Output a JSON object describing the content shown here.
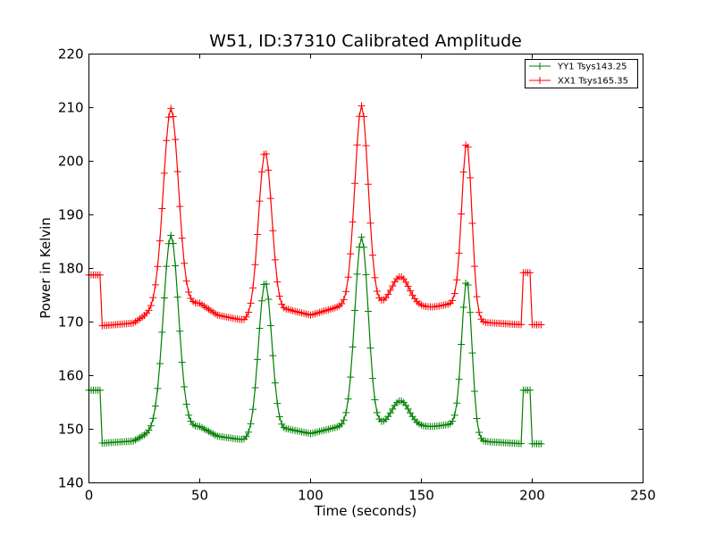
{
  "chart_data": {
    "type": "line",
    "title": "W51, ID:37310 Calibrated Amplitude",
    "xlabel": "Time (seconds)",
    "ylabel": "Power in Kelvin",
    "xlim": [
      0,
      250
    ],
    "ylim": [
      140,
      220
    ],
    "xticks": [
      0,
      50,
      100,
      150,
      200,
      250
    ],
    "yticks": [
      140,
      150,
      160,
      170,
      180,
      190,
      200,
      210,
      220
    ],
    "xtick_labels": [
      "0",
      "50",
      "100",
      "150",
      "200",
      "250"
    ],
    "ytick_labels": [
      "140",
      "150",
      "160",
      "170",
      "180",
      "190",
      "200",
      "210",
      "220"
    ],
    "grid": false,
    "legend_position": "top-right",
    "marker": "+",
    "series": [
      {
        "name": "YY1 Tsys143.25",
        "color": "#008000",
        "baseline": [
          [
            0,
            157.3
          ],
          [
            5,
            157.3
          ],
          [
            5.7,
            147.4
          ],
          [
            20,
            147.8
          ],
          [
            30,
            150
          ],
          [
            50,
            150.5
          ],
          [
            58,
            148.7
          ],
          [
            70,
            148
          ],
          [
            90,
            150
          ],
          [
            100,
            149.2
          ],
          [
            118,
            151
          ],
          [
            135,
            150.5
          ],
          [
            155,
            150.5
          ],
          [
            165,
            151
          ],
          [
            175,
            147.8
          ],
          [
            195.5,
            147.3
          ],
          [
            196,
            157.3
          ],
          [
            199.5,
            157.3
          ],
          [
            200,
            147.3
          ],
          [
            204,
            147.3
          ]
        ],
        "peaks": [
          {
            "center": 37,
            "amplitude": 36,
            "width": 3.4
          },
          {
            "center": 79.5,
            "amplitude": 28.5,
            "width": 3.0
          },
          {
            "center": 123,
            "amplitude": 35,
            "width": 3.0
          },
          {
            "center": 140.5,
            "amplitude": 4.8,
            "width": 4.0
          },
          {
            "center": 170.5,
            "amplitude": 28.5,
            "width": 2.3
          }
        ],
        "sample_step": 1
      },
      {
        "name": "XX1 Tsys165.35",
        "color": "#ff0000",
        "baseline": [
          [
            0,
            178.8
          ],
          [
            5,
            178.8
          ],
          [
            5.7,
            169.3
          ],
          [
            20,
            169.8
          ],
          [
            30,
            172.5
          ],
          [
            50,
            173.5
          ],
          [
            58,
            171.3
          ],
          [
            70,
            170.3
          ],
          [
            90,
            172.3
          ],
          [
            100,
            171.3
          ],
          [
            118,
            173.5
          ],
          [
            135,
            173
          ],
          [
            155,
            172.8
          ],
          [
            165,
            173.5
          ],
          [
            175,
            170
          ],
          [
            195.5,
            169.5
          ],
          [
            196,
            179.2
          ],
          [
            199.5,
            179.2
          ],
          [
            200,
            169.5
          ],
          [
            204,
            169.5
          ]
        ],
        "peaks": [
          {
            "center": 37,
            "amplitude": 37,
            "width": 3.4
          },
          {
            "center": 79.5,
            "amplitude": 30.5,
            "width": 3.0
          },
          {
            "center": 123,
            "amplitude": 37,
            "width": 3.0
          },
          {
            "center": 140.5,
            "amplitude": 5.5,
            "width": 4.0
          },
          {
            "center": 170.5,
            "amplitude": 32,
            "width": 2.3
          }
        ],
        "sample_step": 1
      }
    ]
  }
}
